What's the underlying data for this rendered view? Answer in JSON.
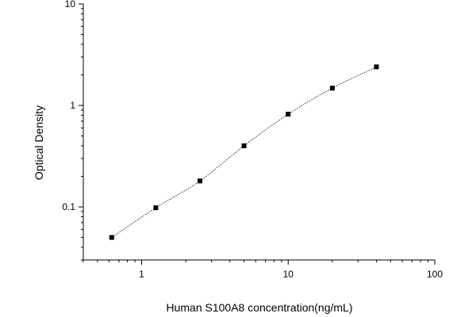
{
  "chart_data": {
    "type": "scatter",
    "title": "",
    "xlabel": "Human S100A8 concentration(ng/mL)",
    "ylabel": "Optical Density",
    "x_scale": "log",
    "y_scale": "log",
    "xlim": [
      0.4,
      100
    ],
    "ylim": [
      0.03,
      10
    ],
    "x_ticks": [
      {
        "value": 1,
        "label": "1"
      },
      {
        "value": 10,
        "label": "10"
      },
      {
        "value": 100,
        "label": "100"
      }
    ],
    "y_ticks": [
      {
        "value": 0.1,
        "label": "0.1"
      },
      {
        "value": 1,
        "label": "1"
      },
      {
        "value": 10,
        "label": "10"
      }
    ],
    "grid": false,
    "legend": "none",
    "marker_color": "#000000",
    "curve_style": "dotted fitted curve",
    "series": [
      {
        "x": [
          0.625,
          1.25,
          2.5,
          5,
          10,
          20,
          40
        ],
        "y": [
          0.05,
          0.098,
          0.18,
          0.4,
          0.82,
          1.48,
          2.4
        ]
      }
    ]
  }
}
